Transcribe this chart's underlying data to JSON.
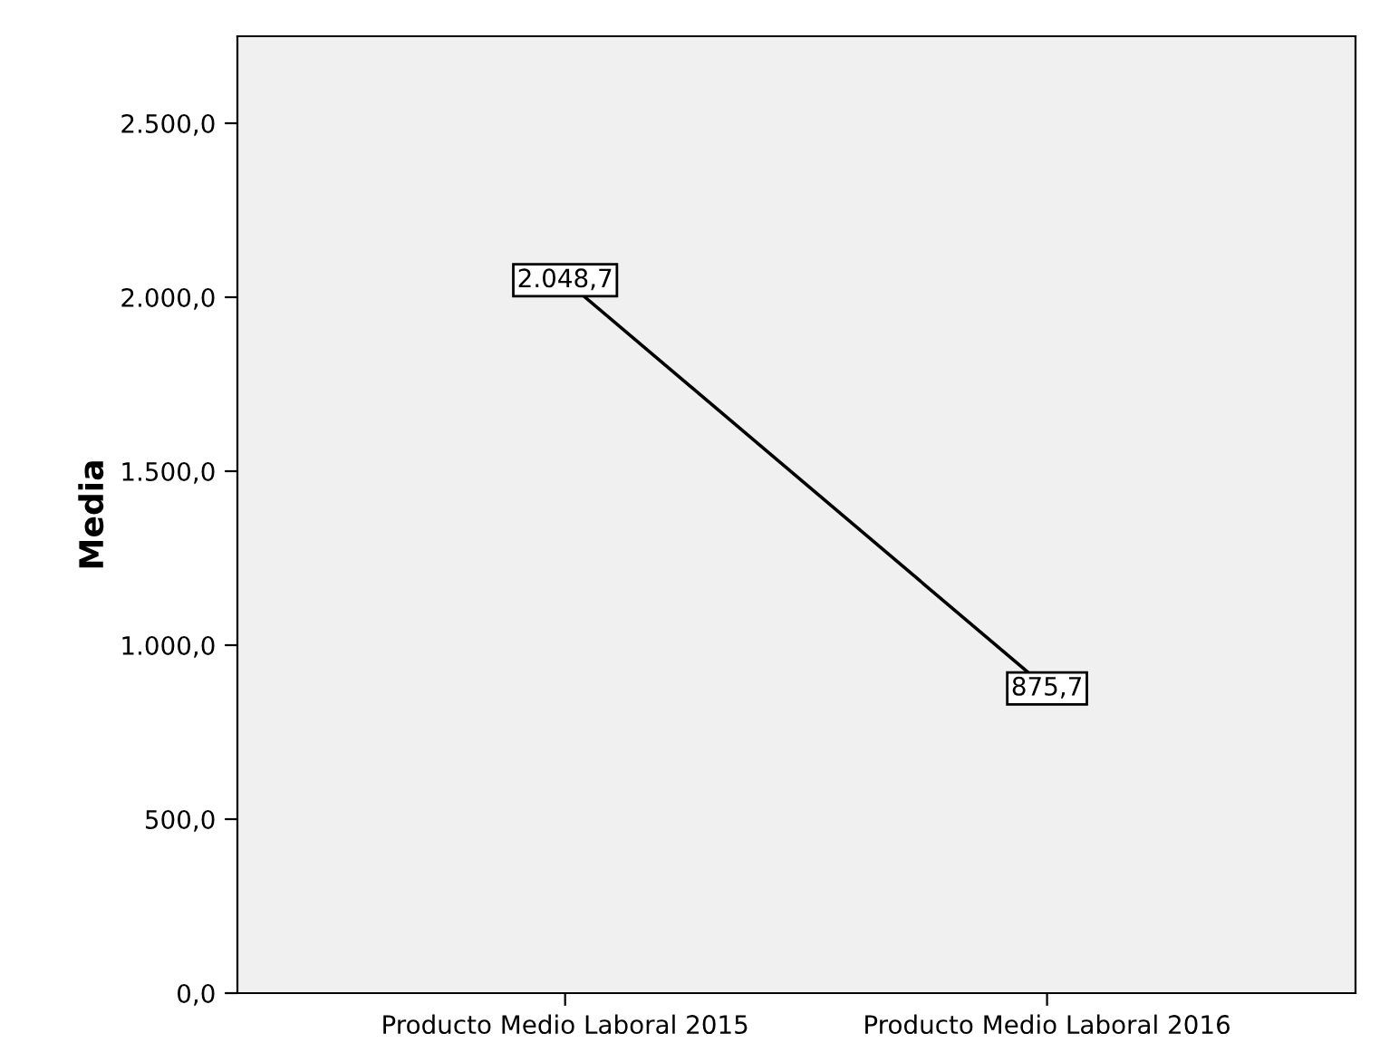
{
  "chart_data": {
    "type": "line",
    "ylabel": "Media",
    "categories": [
      "Producto Medio Laboral 2015",
      "Producto Medio Laboral 2016"
    ],
    "series": [
      {
        "color": "#000000",
        "values": [
          2048.7,
          875.7
        ],
        "value_labels": [
          "2.048,7",
          "875,7"
        ]
      }
    ],
    "ylim": [
      0,
      2750
    ],
    "yticks": [
      {
        "value": 0,
        "label": "0,0"
      },
      {
        "value": 500,
        "label": "500,0"
      },
      {
        "value": 1000,
        "label": "1.000,0"
      },
      {
        "value": 1500,
        "label": "1.500,0"
      },
      {
        "value": 2000,
        "label": "2.000,0"
      },
      {
        "value": 2500,
        "label": "2.500,0"
      }
    ],
    "grid": false,
    "line_style": "solid"
  }
}
